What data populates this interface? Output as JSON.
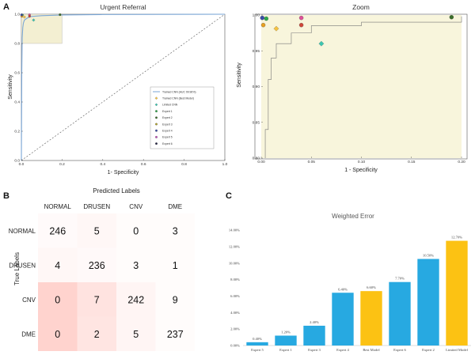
{
  "panel_labels": {
    "a": "A",
    "b": "B",
    "c": "C"
  },
  "chart_data": [
    {
      "type": "line",
      "title": "Urgent Referral",
      "xlabel": "1- Specificity",
      "ylabel": "Sensitivity",
      "xlim": [
        0,
        1.0
      ],
      "ylim": [
        0,
        1.0
      ],
      "xticks": [
        "0.0",
        "0.2",
        "0.4",
        "0.6",
        "0.8",
        "1.0"
      ],
      "yticks": [
        "0.0",
        "0.2",
        "0.4",
        "0.6",
        "0.8",
        "1.0"
      ],
      "curve": {
        "name": "Trained CNN (AUC 99.96%)",
        "color": "#7aa6d6",
        "points": [
          [
            0,
            0
          ],
          [
            0.002,
            0.6
          ],
          [
            0.004,
            0.84
          ],
          [
            0.007,
            0.91
          ],
          [
            0.01,
            0.94
          ],
          [
            0.015,
            0.96
          ],
          [
            0.03,
            0.975
          ],
          [
            0.05,
            0.985
          ],
          [
            0.1,
            0.99
          ],
          [
            0.2,
            0.995
          ],
          [
            0.4,
            0.998
          ],
          [
            1.0,
            1.0
          ]
        ]
      },
      "chance_line": true,
      "zoom_region": {
        "x": [
          0,
          0.2
        ],
        "y": [
          0.8,
          1.0
        ],
        "color": "#f3efd2"
      },
      "legend": [
        {
          "name": "Trained CNN (AUC 99.96%)",
          "marker": "line",
          "color": "#7aa6d6"
        },
        {
          "name": "Trained CNN (Best Model)",
          "marker": "diamond",
          "color": "#f5c242"
        },
        {
          "name": "Limited CNN",
          "marker": "diamond",
          "color": "#3cc6b0"
        },
        {
          "name": "Expert 1",
          "marker": "circle",
          "color": "#2eaa4a"
        },
        {
          "name": "Expert 2",
          "marker": "circle",
          "color": "#3a6e2a"
        },
        {
          "name": "Expert 3",
          "marker": "circle",
          "color": "#b5a82a"
        },
        {
          "name": "Expert 4",
          "marker": "circle",
          "color": "#3a4ea8"
        },
        {
          "name": "Expert 5",
          "marker": "circle",
          "color": "#c94fc2"
        },
        {
          "name": "Expert 6",
          "marker": "circle",
          "color": "#222244"
        }
      ],
      "points": [
        {
          "name": "Trained CNN (Best Model)",
          "x": 0.015,
          "y": 0.981,
          "marker": "diamond",
          "color": "#f5c242"
        },
        {
          "name": "Limited CNN",
          "x": 0.06,
          "y": 0.96,
          "marker": "diamond",
          "color": "#3cc6b0"
        },
        {
          "name": "Expert 1",
          "x": 0.005,
          "y": 0.995,
          "marker": "circle",
          "color": "#2eaa4a"
        },
        {
          "name": "Expert 2",
          "x": 0.19,
          "y": 0.997,
          "marker": "circle",
          "color": "#3a6e2a"
        },
        {
          "name": "Expert 3",
          "x": 0.002,
          "y": 0.986,
          "marker": "circle",
          "color": "#e8a020"
        },
        {
          "name": "Expert 4",
          "x": 0.001,
          "y": 0.996,
          "marker": "circle",
          "color": "#3a4ea8"
        },
        {
          "name": "Expert 5",
          "x": 0.04,
          "y": 0.996,
          "marker": "circle",
          "color": "#e0509a"
        },
        {
          "name": "Expert 6",
          "x": 0.04,
          "y": 0.986,
          "marker": "circle",
          "color": "#d0463a"
        }
      ]
    },
    {
      "type": "line",
      "title": "Zoom",
      "xlabel": "1 - Specificity",
      "ylabel": "Sensitivity",
      "xlim": [
        0,
        0.2
      ],
      "ylim": [
        0.8,
        1.0
      ],
      "xticks": [
        "0.00",
        "0.05",
        "0.10",
        "0.15",
        "0.20"
      ],
      "yticks": [
        "0.80",
        "0.85",
        "0.90",
        "0.95",
        "1.00"
      ],
      "background": "#f8f5dc"
    },
    {
      "type": "heatmap",
      "title": "Predicted Labels",
      "xlabel": "Predicted Labels",
      "ylabel": "True Labels",
      "col_labels": [
        "NORMAL",
        "DRUSEN",
        "CNV",
        "DME"
      ],
      "row_labels": [
        "NORMAL",
        "DRUSEN",
        "CNV",
        "DME"
      ],
      "values": [
        [
          "246",
          "5",
          "0",
          "3"
        ],
        [
          "4",
          "236",
          "3",
          "1"
        ],
        [
          "0",
          "7",
          "242",
          "9"
        ],
        [
          "0",
          "2",
          "5",
          "237"
        ]
      ],
      "shading": [
        [
          0.06,
          0.1,
          0.04,
          0.04
        ],
        [
          0.1,
          0.07,
          0.04,
          0.04
        ],
        [
          0.55,
          0.35,
          0.12,
          0.04
        ],
        [
          0.55,
          0.32,
          0.12,
          0.04
        ]
      ]
    },
    {
      "type": "bar",
      "title": "Weighted Error",
      "categories": [
        "Expert 5",
        "Expert 1",
        "Expert 3",
        "Expert 4",
        "Best Model",
        "Expert 6",
        "Expert 2",
        "Limited Model"
      ],
      "values": [
        0.4,
        1.2,
        2.4,
        6.4,
        6.6,
        7.7,
        10.5,
        12.7
      ],
      "value_labels": [
        "0.40%",
        "1.20%",
        "2.40%",
        "6.40%",
        "6.60%",
        "7.70%",
        "10.50%",
        "12.70%"
      ],
      "colors": [
        "#27a9e1",
        "#27a9e1",
        "#27a9e1",
        "#27a9e1",
        "#fcc213",
        "#27a9e1",
        "#27a9e1",
        "#fcc213"
      ],
      "ylim": [
        0,
        14
      ],
      "yticks": [
        "0.00%",
        "2.00%",
        "4.00%",
        "6.00%",
        "8.00%",
        "10.00%",
        "12.00%",
        "14.00%"
      ]
    }
  ]
}
